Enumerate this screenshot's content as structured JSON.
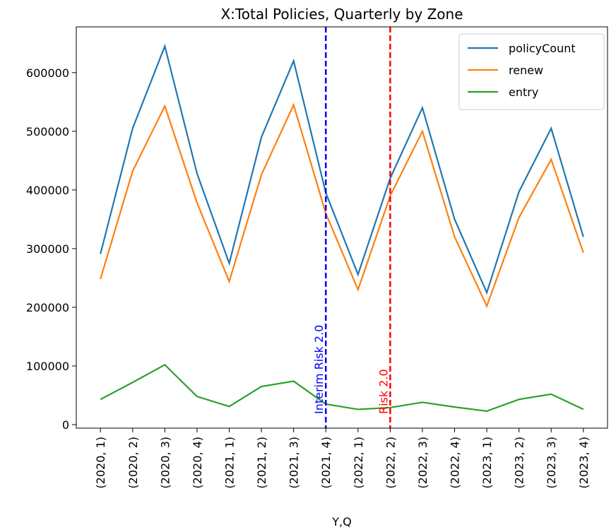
{
  "chart_data": {
    "type": "line",
    "title": "X:Total Policies, Quarterly by Zone",
    "x_label": "Y,Q",
    "categories": [
      "(2020, 1)",
      "(2020, 2)",
      "(2020, 3)",
      "(2020, 4)",
      "(2021, 1)",
      "(2021, 2)",
      "(2021, 3)",
      "(2021, 4)",
      "(2022, 1)",
      "(2022, 2)",
      "(2022, 3)",
      "(2022, 4)",
      "(2023, 1)",
      "(2023, 2)",
      "(2023, 3)",
      "(2023, 4)"
    ],
    "series": [
      {
        "name": "policyCount",
        "color": "#1f77b4",
        "values": [
          291000,
          505000,
          645000,
          428000,
          275000,
          490000,
          620000,
          395000,
          256000,
          420000,
          540000,
          350000,
          225000,
          397000,
          505000,
          320000
        ]
      },
      {
        "name": "renew",
        "color": "#ff7f0e",
        "values": [
          248000,
          432000,
          543000,
          378000,
          244000,
          426000,
          545000,
          360000,
          230000,
          390000,
          500000,
          320000,
          202000,
          353000,
          452000,
          293000
        ]
      },
      {
        "name": "entry",
        "color": "#2ca02c",
        "values": [
          43000,
          72000,
          102000,
          48000,
          31000,
          65000,
          74000,
          35000,
          26000,
          29000,
          38000,
          30000,
          23000,
          43000,
          52000,
          26000
        ]
      }
    ],
    "vlines": [
      {
        "x": "(2021, 4)",
        "label": "Interim Risk 2.0",
        "color": "#0000ff"
      },
      {
        "x": "(2022, 2)",
        "label": "Risk 2.0",
        "color": "#ff0000"
      }
    ],
    "ylim": [
      -6000,
      678000
    ],
    "yticks": [
      0,
      100000,
      200000,
      300000,
      400000,
      500000,
      600000
    ],
    "legend": "upper right"
  }
}
